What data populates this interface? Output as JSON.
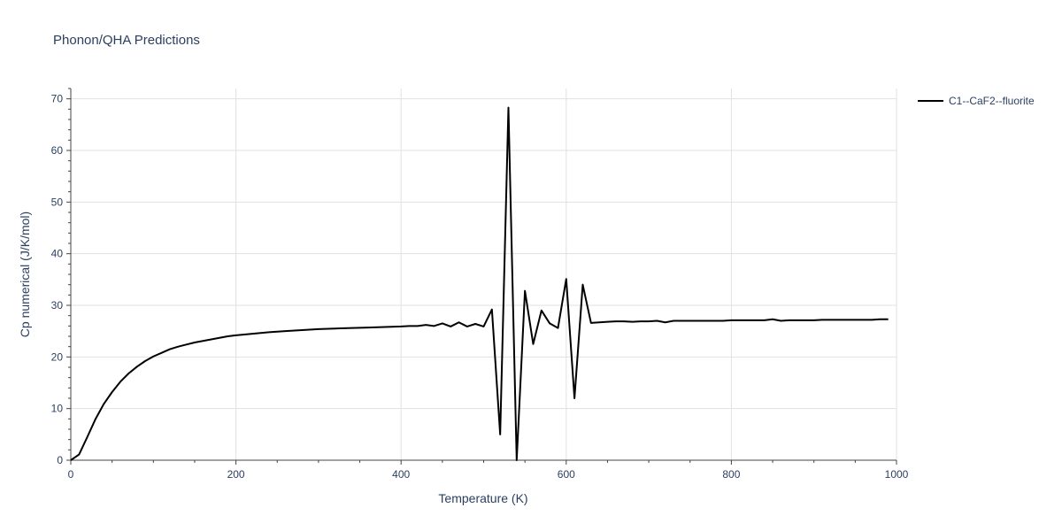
{
  "chart_data": {
    "type": "line",
    "title": "Phonon/QHA Predictions",
    "xlabel": "Temperature (K)",
    "ylabel": "Cp numerical (J/K/mol)",
    "xlim": [
      0,
      1000
    ],
    "ylim": [
      0,
      72
    ],
    "xticks": [
      0,
      200,
      400,
      600,
      800,
      1000
    ],
    "yticks": [
      0,
      10,
      20,
      30,
      40,
      50,
      60,
      70
    ],
    "grid": true,
    "legend_position": "top-right",
    "series": [
      {
        "name": "C1--CaF2--fluorite",
        "color": "#000000",
        "x": [
          0,
          10,
          20,
          30,
          40,
          50,
          60,
          70,
          80,
          90,
          100,
          110,
          120,
          130,
          140,
          150,
          160,
          170,
          180,
          190,
          200,
          220,
          240,
          260,
          280,
          300,
          320,
          340,
          360,
          380,
          400,
          410,
          420,
          430,
          440,
          450,
          460,
          470,
          480,
          490,
          500,
          510,
          520,
          530,
          540,
          550,
          560,
          570,
          580,
          590,
          600,
          610,
          620,
          630,
          640,
          650,
          660,
          670,
          680,
          690,
          700,
          710,
          720,
          730,
          740,
          750,
          760,
          770,
          780,
          790,
          800,
          810,
          820,
          830,
          840,
          850,
          860,
          870,
          880,
          890,
          900,
          910,
          920,
          930,
          940,
          950,
          960,
          970,
          980,
          990
        ],
        "y": [
          0,
          1.1,
          4.5,
          8.0,
          10.9,
          13.2,
          15.2,
          16.8,
          18.1,
          19.2,
          20.1,
          20.8,
          21.5,
          22.0,
          22.4,
          22.8,
          23.1,
          23.4,
          23.7,
          24.0,
          24.2,
          24.5,
          24.8,
          25.0,
          25.2,
          25.4,
          25.5,
          25.6,
          25.7,
          25.8,
          25.9,
          26.0,
          26.0,
          26.2,
          26.0,
          26.5,
          25.9,
          26.7,
          25.9,
          26.4,
          25.9,
          29.2,
          5.0,
          68.3,
          0.0,
          32.8,
          22.5,
          29.0,
          26.5,
          25.6,
          35.1,
          12.0,
          34.0,
          26.6,
          26.7,
          26.8,
          26.9,
          26.9,
          26.8,
          26.9,
          26.9,
          27.0,
          26.7,
          27.0,
          27.0,
          27.0,
          27.0,
          27.0,
          27.0,
          27.0,
          27.1,
          27.1,
          27.1,
          27.1,
          27.1,
          27.3,
          27.0,
          27.1,
          27.1,
          27.1,
          27.1,
          27.2,
          27.2,
          27.2,
          27.2,
          27.2,
          27.2,
          27.2,
          27.3,
          27.3
        ]
      }
    ]
  }
}
